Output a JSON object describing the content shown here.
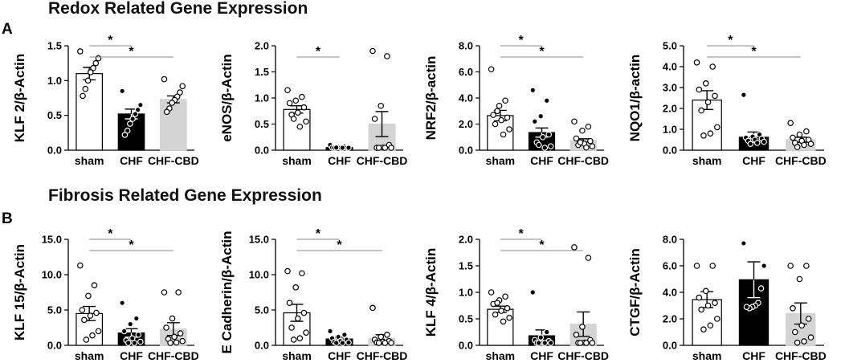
{
  "section_a": {
    "title": "Redox Related Gene Expression",
    "letter": "A"
  },
  "section_b": {
    "title": "Fibrosis Related Gene Expression",
    "letter": "B"
  },
  "colors": {
    "sham": "#ffffff",
    "CHF": "#000000",
    "CHF-CBD": "#d4d4d4",
    "axis": "#000000",
    "sig_line": "#888888"
  },
  "chart_data": [
    {
      "type": "bar",
      "ylabel": "KLF 2/β-Actin",
      "categories": [
        "sham",
        "CHF",
        "CHF-CBD"
      ],
      "values": [
        1.1,
        0.52,
        0.73
      ],
      "errors": [
        0.09,
        0.07,
        0.05
      ],
      "ylim": [
        0,
        1.5
      ],
      "yticks": [
        "0.0",
        "0.5",
        "1.0",
        "1.5"
      ],
      "points": [
        [
          1.42,
          1.32,
          1.25,
          1.18,
          1.12,
          1.0,
          0.88,
          0.78
        ],
        [
          0.85,
          0.65,
          0.58,
          0.52,
          0.45,
          0.38,
          0.28,
          0.22
        ],
        [
          1.02,
          0.92,
          0.83,
          0.77,
          0.72,
          0.68,
          0.6,
          0.55
        ]
      ],
      "significance": [
        {
          "from": 0,
          "to": 1,
          "label": "*"
        },
        {
          "from": 0,
          "to": 2,
          "label": "*"
        }
      ]
    },
    {
      "type": "bar",
      "ylabel": "eNOS/β-Actin",
      "categories": [
        "sham",
        "CHF",
        "CHF-CBD"
      ],
      "values": [
        0.78,
        0.05,
        0.5
      ],
      "errors": [
        0.07,
        0.01,
        0.24
      ],
      "ylim": [
        0,
        2.0
      ],
      "yticks": [
        "0.0",
        "0.5",
        "1.0",
        "1.5",
        "2.0"
      ],
      "points": [
        [
          1.15,
          1.02,
          0.95,
          0.9,
          0.82,
          0.72,
          0.68,
          0.55,
          0.45,
          0.6
        ],
        [
          0.1,
          0.07,
          0.06,
          0.05,
          0.04,
          0.04,
          0.03,
          0.02,
          0.02,
          0.05
        ],
        [
          1.9,
          1.8,
          0.85,
          0.6,
          0.1,
          0.05,
          0.03,
          0.02,
          0.02,
          0.01
        ]
      ],
      "significance": [
        {
          "from": 0,
          "to": 1,
          "label": "*"
        }
      ]
    },
    {
      "type": "bar",
      "ylabel": "NRF2/β-actin",
      "categories": [
        "sham",
        "CHF",
        "CHF-CBD"
      ],
      "values": [
        2.65,
        1.35,
        0.75
      ],
      "errors": [
        0.4,
        0.35,
        0.12
      ],
      "ylim": [
        0,
        8.0
      ],
      "yticks": [
        "0.0",
        "2.0",
        "4.0",
        "6.0",
        "8.0"
      ],
      "points": [
        [
          6.2,
          3.8,
          3.4,
          2.7,
          2.5,
          2.3,
          2.0,
          1.6,
          1.2,
          3.0
        ],
        [
          4.6,
          3.8,
          2.6,
          2.2,
          1.2,
          1.0,
          0.6,
          0.3,
          0.1,
          0.4
        ],
        [
          2.2,
          1.8,
          1.5,
          0.9,
          0.7,
          0.5,
          0.4,
          0.3,
          0.2,
          0.6
        ]
      ],
      "significance": [
        {
          "from": 0,
          "to": 1,
          "label": "*"
        },
        {
          "from": 0,
          "to": 2,
          "label": "*"
        }
      ]
    },
    {
      "type": "bar",
      "ylabel": "NQO1/β-actin",
      "categories": [
        "sham",
        "CHF",
        "CHF-CBD"
      ],
      "values": [
        2.4,
        0.62,
        0.5
      ],
      "errors": [
        0.45,
        0.25,
        0.12
      ],
      "ylim": [
        0,
        5.0
      ],
      "yticks": [
        "0.0",
        "1.0",
        "2.0",
        "3.0",
        "4.0",
        "5.0"
      ],
      "points": [
        [
          4.2,
          4.0,
          3.2,
          2.9,
          2.6,
          2.3,
          1.9,
          1.1,
          0.8,
          0.7
        ],
        [
          2.65,
          0.75,
          0.65,
          0.6,
          0.55,
          0.5,
          0.45,
          0.4,
          0.35,
          0.3
        ],
        [
          1.3,
          0.9,
          0.75,
          0.6,
          0.5,
          0.45,
          0.35,
          0.3,
          0.25,
          0.15
        ]
      ],
      "significance": [
        {
          "from": 0,
          "to": 1,
          "label": "*"
        },
        {
          "from": 0,
          "to": 2,
          "label": "*"
        }
      ]
    },
    {
      "type": "bar",
      "ylabel": "KLF 15/β-Actin",
      "categories": [
        "sham",
        "CHF",
        "CHF-CBD"
      ],
      "values": [
        4.5,
        1.75,
        2.3
      ],
      "errors": [
        1.0,
        0.6,
        0.9
      ],
      "ylim": [
        0,
        15.0
      ],
      "yticks": [
        "0.0",
        "5.0",
        "10.0",
        "15.0"
      ],
      "points": [
        [
          11.3,
          8.5,
          7.0,
          5.0,
          4.6,
          4.2,
          3.6,
          2.0,
          1.4,
          0.8
        ],
        [
          6.0,
          3.8,
          3.0,
          2.0,
          1.5,
          1.0,
          0.7,
          0.5,
          0.3,
          0.2
        ],
        [
          7.5,
          7.5,
          3.8,
          2.5,
          1.7,
          1.2,
          0.9,
          0.6,
          0.4,
          0.2
        ]
      ],
      "significance": [
        {
          "from": 0,
          "to": 1,
          "label": "*"
        },
        {
          "from": 0,
          "to": 2,
          "label": "*"
        }
      ]
    },
    {
      "type": "bar",
      "ylabel": "E Cadherin/β-Actin",
      "categories": [
        "sham",
        "CHF",
        "CHF-CBD"
      ],
      "values": [
        4.6,
        0.9,
        1.0
      ],
      "errors": [
        1.2,
        0.25,
        0.5
      ],
      "ylim": [
        0,
        15.0
      ],
      "yticks": [
        "0.0",
        "5.0",
        "10.0",
        "15.0"
      ],
      "points": [
        [
          10.5,
          10.2,
          8.2,
          6.0,
          4.6,
          3.8,
          2.5,
          1.8,
          1.0,
          0.8
        ],
        [
          2.0,
          1.5,
          1.2,
          1.0,
          0.8,
          0.6,
          0.5,
          0.4,
          0.3,
          0.2
        ],
        [
          5.3,
          1.5,
          1.2,
          0.8,
          0.6,
          0.5,
          0.4,
          0.3,
          0.2,
          0.1
        ]
      ],
      "significance": [
        {
          "from": 0,
          "to": 1,
          "label": "*"
        },
        {
          "from": 0,
          "to": 2,
          "label": "*"
        }
      ]
    },
    {
      "type": "bar",
      "ylabel": "KLF 4/β-Actin",
      "categories": [
        "sham",
        "CHF",
        "CHF-CBD"
      ],
      "values": [
        0.68,
        0.18,
        0.4
      ],
      "errors": [
        0.06,
        0.11,
        0.23
      ],
      "ylim": [
        0,
        2.0
      ],
      "yticks": [
        "0.0",
        "0.5",
        "1.0",
        "1.5",
        "2.0"
      ],
      "points": [
        [
          1.0,
          0.92,
          0.85,
          0.78,
          0.7,
          0.65,
          0.58,
          0.52,
          0.45,
          0.8
        ],
        [
          1.0,
          0.25,
          0.15,
          0.1,
          0.08,
          0.05,
          0.04,
          0.03,
          0.02,
          0.01
        ],
        [
          1.85,
          1.65,
          0.35,
          0.2,
          0.1,
          0.05,
          0.04,
          0.03,
          0.02,
          0.01
        ]
      ],
      "significance": [
        {
          "from": 0,
          "to": 1,
          "label": "*"
        },
        {
          "from": 0,
          "to": 2,
          "label": "*"
        }
      ]
    },
    {
      "type": "bar",
      "ylabel": "CTGF/β-Actin",
      "categories": [
        "sham",
        "CHF",
        "CHF-CBD"
      ],
      "values": [
        3.45,
        4.95,
        2.4
      ],
      "errors": [
        0.6,
        1.35,
        0.8
      ],
      "ylim": [
        0,
        8.0
      ],
      "yticks": [
        "0.0",
        "2.0",
        "4.0",
        "6.0",
        "8.0"
      ],
      "points": [
        [
          6.0,
          6.0,
          4.1,
          3.6,
          3.2,
          3.0,
          2.7,
          2.0,
          1.5,
          1.2
        ],
        [
          7.7,
          6.0,
          4.3,
          3.2,
          3.0,
          2.9,
          2.8,
          2.9
        ],
        [
          6.0,
          6.0,
          5.0,
          2.8,
          2.0,
          1.5,
          1.0,
          0.6,
          0.3,
          0.2
        ]
      ],
      "significance": []
    }
  ]
}
